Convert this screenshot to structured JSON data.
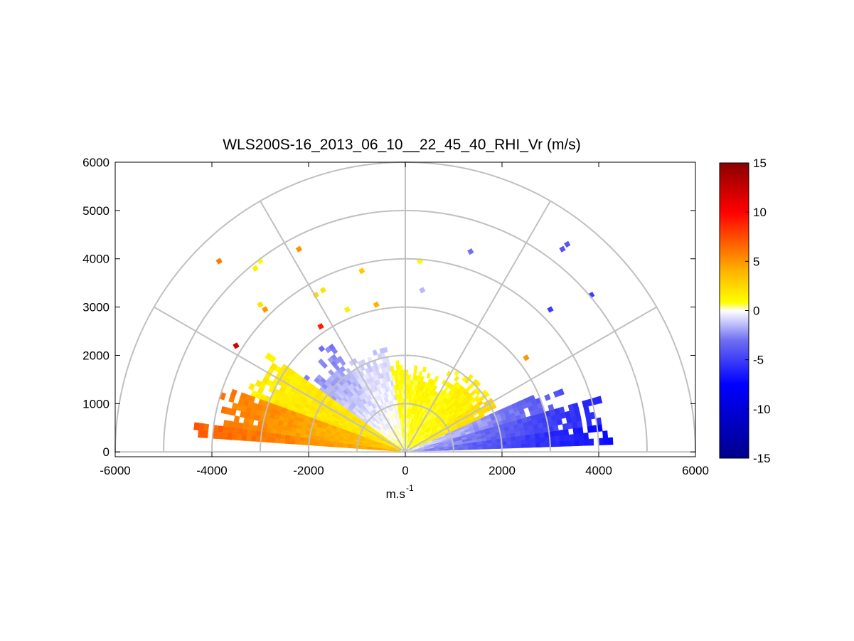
{
  "chart_data": {
    "type": "heatmap",
    "subtype": "polar-RHI-sector",
    "title": "WLS200S-16_2013_06_10__22_45_40_RHI_Vr (m/s)",
    "xlabel": "m.s",
    "xlabel_superscript": "-1",
    "ylabel": "",
    "xlim": [
      -6000,
      6000
    ],
    "ylim": [
      -100,
      6000
    ],
    "x_ticks": [
      "-6000",
      "-4000",
      "-2000",
      "0",
      "2000",
      "4000",
      "6000"
    ],
    "y_ticks": [
      "0",
      "1000",
      "2000",
      "3000",
      "4000",
      "5000",
      "6000"
    ],
    "grid": {
      "range_rings_m": [
        1000,
        2000,
        3000,
        4000,
        5000,
        6000
      ],
      "radial_spokes_deg": [
        0,
        30,
        60,
        90,
        120,
        150,
        180
      ]
    },
    "colorbar": {
      "label": "Vr (m/s)",
      "min": -15,
      "max": 15,
      "ticks": [
        "15",
        "10",
        "5",
        "0",
        "-5",
        "-10",
        "-15"
      ],
      "stops": [
        {
          "value": -15,
          "color": "#00008b"
        },
        {
          "value": -7.5,
          "color": "#0000ff"
        },
        {
          "value": -3,
          "color": "#6f6ff2"
        },
        {
          "value": -0.5,
          "color": "#e8e8ff"
        },
        {
          "value": 0,
          "color": "#ffffff"
        },
        {
          "value": 0.8,
          "color": "#ffff00"
        },
        {
          "value": 4,
          "color": "#ffb300"
        },
        {
          "value": 7,
          "color": "#ff5a00"
        },
        {
          "value": 10,
          "color": "#ff0000"
        },
        {
          "value": 15,
          "color": "#8b0000"
        }
      ]
    },
    "scan": {
      "elevation_start_deg": 2,
      "elevation_end_deg": 178,
      "elevation_step_deg": 2,
      "gate_length_m": 100
    },
    "velocity_field": [
      {
        "el": [
          2,
          9
        ],
        "range_m": [
          100,
          4300
        ],
        "vr_at_near": -2,
        "vr_at_far": -7.5
      },
      {
        "el": [
          9,
          17
        ],
        "range_m": [
          100,
          4000
        ],
        "vr_at_near": -1.5,
        "vr_at_far": -6
      },
      {
        "el": [
          17,
          25
        ],
        "range_m": [
          100,
          3200
        ],
        "vr_at_near": -0.5,
        "vr_at_far": -4
      },
      {
        "el": [
          25,
          35
        ],
        "range_m": [
          100,
          2000
        ],
        "vr_at_near": 1,
        "vr_at_far": 2.5
      },
      {
        "el": [
          35,
          50
        ],
        "range_m": [
          100,
          2000
        ],
        "vr_at_near": 0.8,
        "vr_at_far": 1.5
      },
      {
        "el": [
          50,
          80
        ],
        "range_m": [
          100,
          1700
        ],
        "vr_at_near": 0.8,
        "vr_at_far": 1.2
      },
      {
        "el": [
          80,
          100
        ],
        "range_m": [
          100,
          1700
        ],
        "vr_at_near": 0.5,
        "vr_at_far": 1
      },
      {
        "el": [
          100,
          125
        ],
        "range_m": [
          100,
          2100
        ],
        "vr_at_near": 0.3,
        "vr_at_far": -1
      },
      {
        "el": [
          125,
          145
        ],
        "range_m": [
          100,
          2500
        ],
        "vr_at_near": 0.5,
        "vr_at_far": -2.5
      },
      {
        "el": [
          145,
          160
        ],
        "range_m": [
          100,
          3400
        ],
        "vr_at_near": 2,
        "vr_at_far": 1.5
      },
      {
        "el": [
          160,
          172
        ],
        "range_m": [
          100,
          3900
        ],
        "vr_at_near": 3,
        "vr_at_far": 6
      },
      {
        "el": [
          172,
          177
        ],
        "range_m": [
          100,
          4500
        ],
        "vr_at_near": 4,
        "vr_at_far": 7
      }
    ],
    "isolated_gates": [
      {
        "x": 1350,
        "y": 4150,
        "vr": -3
      },
      {
        "x": 3250,
        "y": 4200,
        "vr": -4
      },
      {
        "x": 3350,
        "y": 4300,
        "vr": -4
      },
      {
        "x": 3850,
        "y": 3250,
        "vr": -5
      },
      {
        "x": 3000,
        "y": 2950,
        "vr": -5
      },
      {
        "x": 2500,
        "y": 1950,
        "vr": 5
      },
      {
        "x": 300,
        "y": 3950,
        "vr": 1
      },
      {
        "x": 350,
        "y": 3350,
        "vr": -1.5
      },
      {
        "x": -600,
        "y": 3050,
        "vr": 4
      },
      {
        "x": -900,
        "y": 3750,
        "vr": 3
      },
      {
        "x": -1200,
        "y": 2950,
        "vr": 1.5
      },
      {
        "x": -1750,
        "y": 2600,
        "vr": 9
      },
      {
        "x": -1700,
        "y": 3350,
        "vr": 2
      },
      {
        "x": -1850,
        "y": 3250,
        "vr": 2.5
      },
      {
        "x": -2200,
        "y": 4200,
        "vr": 5
      },
      {
        "x": -3000,
        "y": 3950,
        "vr": 1
      },
      {
        "x": -3100,
        "y": 3800,
        "vr": 1.5
      },
      {
        "x": -3000,
        "y": 3050,
        "vr": 2
      },
      {
        "x": -2900,
        "y": 2950,
        "vr": 5
      },
      {
        "x": -3850,
        "y": 3950,
        "vr": 6
      },
      {
        "x": -3500,
        "y": 2200,
        "vr": 12
      }
    ]
  }
}
